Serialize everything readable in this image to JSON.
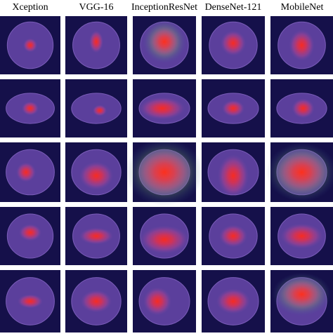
{
  "columns": [
    "Xception",
    "VGG-16",
    "InceptionResNet",
    "DenseNet-121",
    "MobileNet"
  ]
}
